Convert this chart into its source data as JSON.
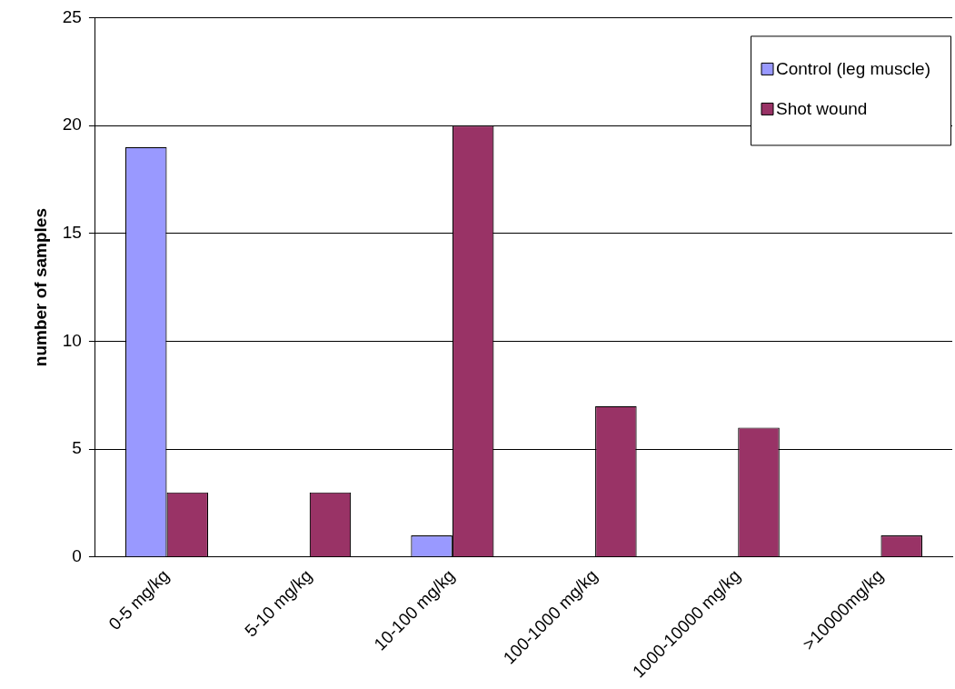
{
  "chart_data": {
    "type": "bar",
    "ylabel": "number of samples",
    "categories": [
      "0-5 mg/kg",
      "5-10 mg/kg",
      "10-100 mg/kg",
      "100-1000 mg/kg",
      "1000-10000 mg/kg",
      ">10000mg/kg"
    ],
    "series": [
      {
        "name": "Control (leg muscle)",
        "color": "#9999ff",
        "values": [
          19,
          0,
          1,
          0,
          0,
          0
        ]
      },
      {
        "name": "Shot wound",
        "color": "#993366",
        "values": [
          3,
          3,
          20,
          7,
          6,
          1
        ]
      }
    ],
    "ylim": [
      0,
      25
    ],
    "yticks": [
      0,
      5,
      10,
      15,
      20,
      25
    ],
    "grid": "y",
    "legend": "top right"
  }
}
